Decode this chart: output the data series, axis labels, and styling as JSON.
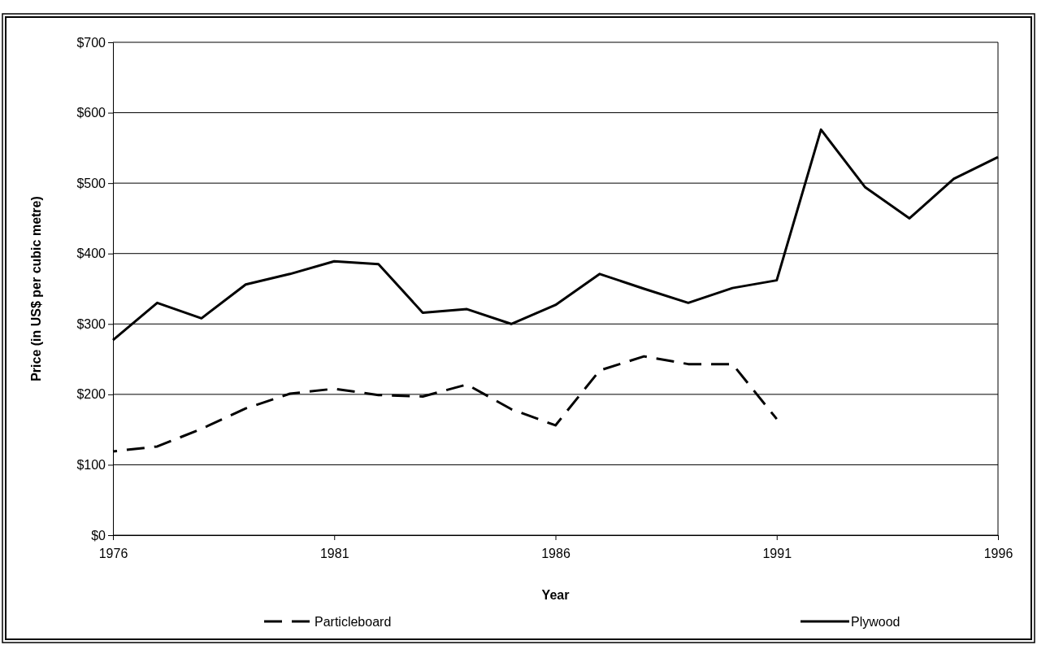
{
  "chart_data": {
    "type": "line",
    "xlabel": "Year",
    "ylabel": "Price (in US$ per cubic metre)",
    "x": [
      1976,
      1977,
      1978,
      1979,
      1980,
      1981,
      1982,
      1983,
      1984,
      1985,
      1986,
      1987,
      1988,
      1989,
      1990,
      1991,
      1992,
      1993,
      1994,
      1995,
      1996
    ],
    "xlim": [
      1976,
      1996
    ],
    "xticks": [
      1976,
      1981,
      1986,
      1991,
      1996
    ],
    "ylim": [
      0,
      700
    ],
    "yticks": [
      {
        "value": 0,
        "label": "$0"
      },
      {
        "value": 100,
        "label": "$100"
      },
      {
        "value": 200,
        "label": "$200"
      },
      {
        "value": 300,
        "label": "$300"
      },
      {
        "value": 400,
        "label": "$400"
      },
      {
        "value": 500,
        "label": "$500"
      },
      {
        "value": 600,
        "label": "$600"
      },
      {
        "value": 700,
        "label": "$700"
      }
    ],
    "grid": "y",
    "legend": "bottom",
    "series": [
      {
        "name": "Particleboard",
        "color": "#000000",
        "line_style": "dashed",
        "values": [
          119,
          126,
          151,
          180,
          201,
          208,
          199,
          197,
          214,
          179,
          156,
          234,
          254,
          243,
          243,
          165,
          null,
          null,
          null,
          null,
          null
        ]
      },
      {
        "name": "Plywood",
        "color": "#000000",
        "line_style": "solid",
        "values": [
          277,
          330,
          308,
          356,
          371,
          389,
          385,
          316,
          321,
          300,
          327,
          371,
          350,
          330,
          351,
          362,
          576,
          494,
          450,
          506,
          537
        ]
      }
    ]
  }
}
